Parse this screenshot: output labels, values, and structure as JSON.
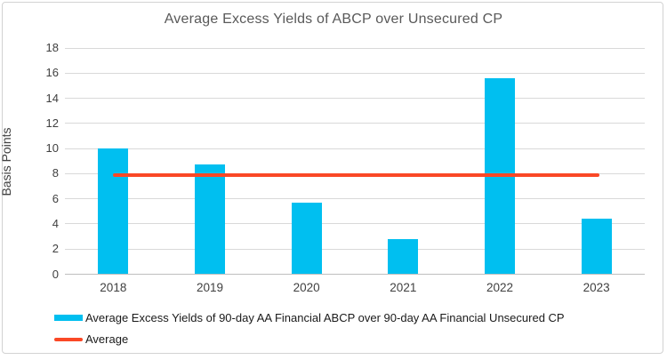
{
  "chart_data": {
    "type": "bar",
    "title": "Average Excess Yields of ABCP over Unsecured CP",
    "ylabel": "Basis Points",
    "xlabel": "",
    "categories": [
      "2018",
      "2019",
      "2020",
      "2021",
      "2022",
      "2023"
    ],
    "series": [
      {
        "name": "Average Excess Yields of 90-day AA Financial ABCP over 90-day AA Financial Unsecured CP",
        "type": "bar",
        "color": "#00bff0",
        "values": [
          10.0,
          8.7,
          5.7,
          2.8,
          15.6,
          4.4
        ]
      },
      {
        "name": "Average",
        "type": "line",
        "color": "#fa4826",
        "value": 7.9
      }
    ],
    "ylim": [
      0,
      18
    ],
    "ytick_step": 2,
    "grid": true,
    "legend_position": "bottom-left",
    "axis_text_color": "#404040",
    "title_color": "#595959",
    "gridline_color": "#d9d9d9"
  }
}
